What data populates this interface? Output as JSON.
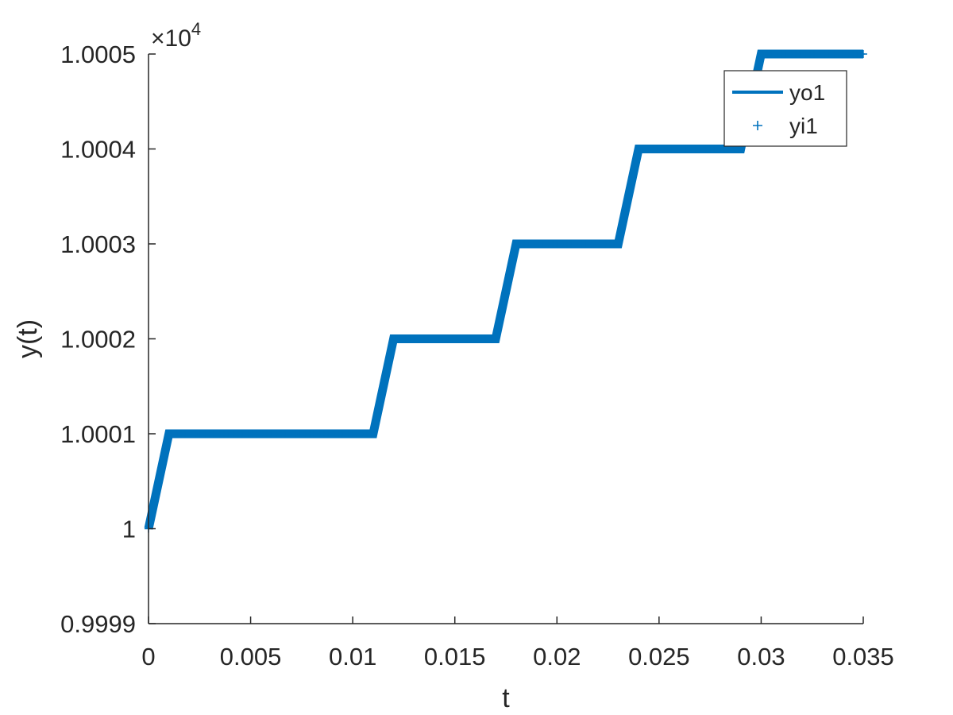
{
  "chart_data": {
    "type": "line",
    "xlabel": "t",
    "ylabel": "y(t)",
    "y_exponent_label": "×10",
    "y_exponent_power": "4",
    "xlim": [
      0,
      0.035
    ],
    "ylim": [
      0.9999,
      1.0005
    ],
    "xticks": [
      0,
      0.005,
      0.01,
      0.015,
      0.02,
      0.025,
      0.03,
      0.035
    ],
    "xtick_labels": [
      "0",
      "0.005",
      "0.01",
      "0.015",
      "0.02",
      "0.025",
      "0.03",
      "0.035"
    ],
    "yticks": [
      0.9999,
      1.0,
      1.0001,
      1.0002,
      1.0003,
      1.0004,
      1.0005
    ],
    "ytick_labels": [
      "0.9999",
      "1",
      "1.0001",
      "1.0002",
      "1.0003",
      "1.0004",
      "1.0005"
    ],
    "grid": false,
    "legend_position": "top-right",
    "colors": {
      "series": "#0072BD",
      "axes": "#262626"
    },
    "series": [
      {
        "name": "yo1",
        "style": "solid-line",
        "x": [
          0,
          0.001,
          0.011,
          0.012,
          0.017,
          0.018,
          0.023,
          0.024,
          0.029,
          0.03,
          0.035
        ],
        "y": [
          1.0,
          1.0001,
          1.0001,
          1.0002,
          1.0002,
          1.0003,
          1.0003,
          1.0004,
          1.0004,
          1.0005,
          1.0005
        ]
      },
      {
        "name": "yi1",
        "style": "plus-markers",
        "x": [
          0,
          0.001,
          0.011,
          0.012,
          0.017,
          0.018,
          0.023,
          0.024,
          0.029,
          0.03,
          0.035
        ],
        "y": [
          1.0,
          1.0001,
          1.0001,
          1.0002,
          1.0002,
          1.0003,
          1.0003,
          1.0004,
          1.0004,
          1.0005,
          1.0005
        ]
      }
    ]
  }
}
